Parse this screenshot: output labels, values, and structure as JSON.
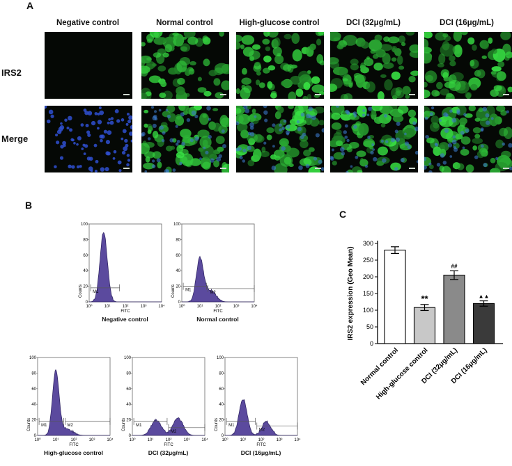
{
  "panelA": {
    "letter": "A",
    "columns": [
      "Negative control",
      "Normal control",
      "High-glucose control",
      "DCI (32μg/mL)",
      "DCI (16μg/mL)"
    ],
    "rows": [
      "IRS2",
      "Merge"
    ]
  },
  "panelB": {
    "letter": "B",
    "axis_y_label": "Counts",
    "axis_x_label": "FITC",
    "x_ticks": [
      "10⁰",
      "10¹",
      "10²",
      "10³",
      "10⁴"
    ],
    "y_ticks": [
      "0",
      "20",
      "40",
      "60",
      "80",
      "100"
    ],
    "gate_m1": "M1",
    "gate_m2": "M2",
    "histograms": [
      {
        "caption": "Negative control",
        "gates": [
          "M1"
        ]
      },
      {
        "caption": "Normal control",
        "gates": [
          "M1",
          "M2"
        ]
      },
      {
        "caption": "High-glucose control",
        "gates": [
          "M1",
          "M2"
        ]
      },
      {
        "caption": "DCI (32μg/mL)",
        "gates": [
          "M1",
          "M2"
        ]
      },
      {
        "caption": "DCI (16μg/mL)",
        "gates": [
          "M1",
          "M2"
        ]
      }
    ]
  },
  "panelC": {
    "letter": "C",
    "chart_data": {
      "type": "bar",
      "categories": [
        "Normal control",
        "High-glucose control",
        "DCI (32μg/mL)",
        "DCI (16μg/mL)"
      ],
      "values": [
        280,
        108,
        205,
        120
      ],
      "errors": [
        10,
        9,
        13,
        8
      ],
      "annotations": [
        "",
        "**",
        "##",
        "▲▲"
      ],
      "bar_colors": [
        "#ffffff",
        "#c8c8c8",
        "#8a8a8a",
        "#3a3a3a"
      ],
      "ylabel": "IRS2 expression (Geo Mean)",
      "ylim": [
        0,
        300
      ],
      "yticks": [
        "0",
        "50",
        "100",
        "150",
        "200",
        "250",
        "300"
      ]
    }
  }
}
